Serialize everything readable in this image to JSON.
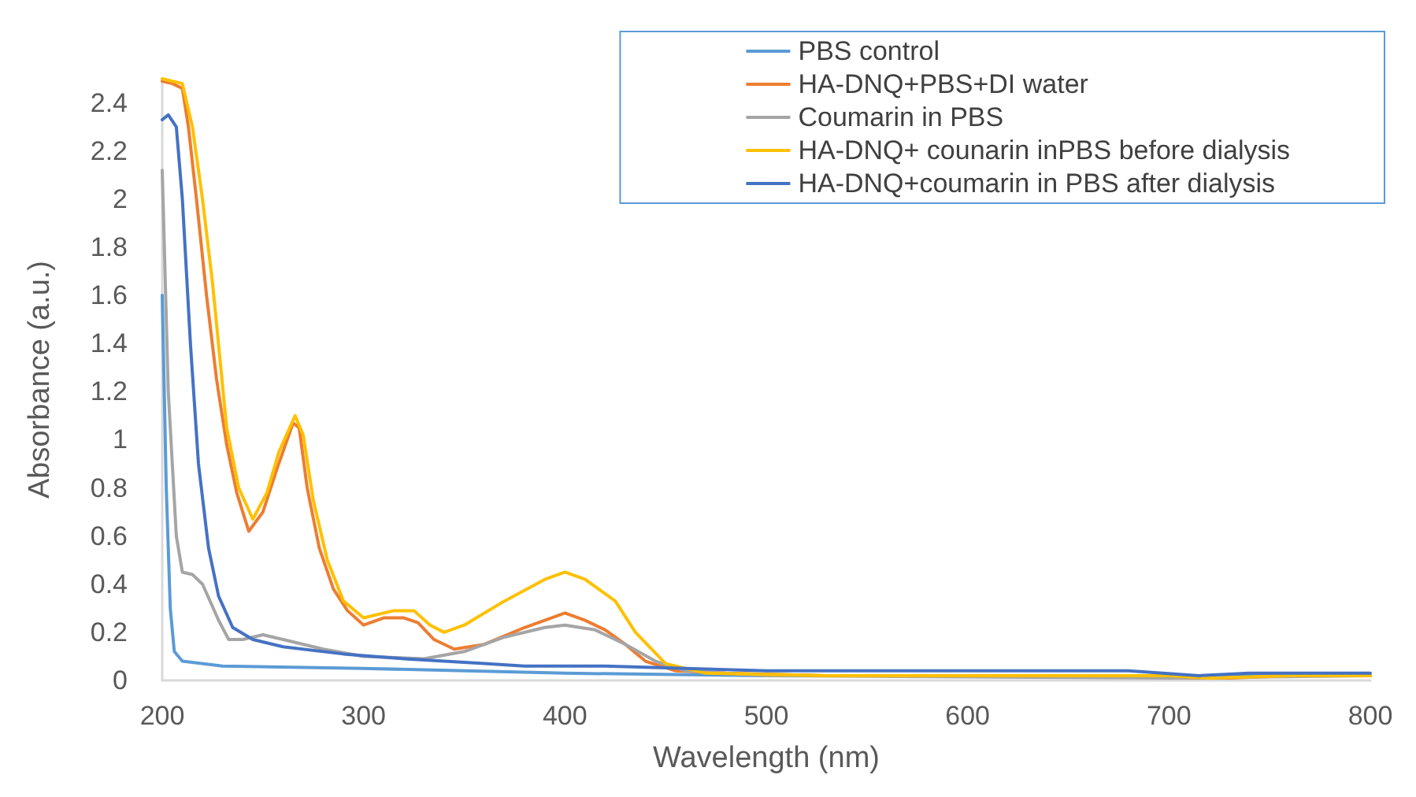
{
  "chart_data": {
    "type": "line",
    "xlabel": "Wavelength (nm)",
    "ylabel": "Absorbance (a.u.)",
    "xlim": [
      200,
      800
    ],
    "xticks": [
      200,
      300,
      400,
      500,
      600,
      700,
      800
    ],
    "ylim": [
      0,
      2.5
    ],
    "yticks": [
      0,
      0.2,
      0.4,
      0.6,
      0.8,
      1,
      1.2,
      1.4,
      1.6,
      1.8,
      2,
      2.2,
      2.4
    ],
    "grid": false,
    "legend": "top right",
    "marker": "none",
    "line_style": "solid",
    "series": [
      {
        "name": "PBS control",
        "color": "#5b9bd5",
        "x": [
          200,
          202,
          204,
          206,
          210,
          230,
          300,
          400,
          500,
          600,
          700,
          800
        ],
        "values": [
          1.6,
          0.8,
          0.3,
          0.12,
          0.08,
          0.06,
          0.05,
          0.03,
          0.02,
          0.02,
          0.02,
          0.02
        ]
      },
      {
        "name": "HA-DNQ+PBS+DI water",
        "color": "#ed7d31",
        "x": [
          200,
          205,
          210,
          213,
          217,
          222,
          227,
          232,
          237,
          243,
          250,
          257,
          265,
          268,
          272,
          278,
          285,
          292,
          300,
          310,
          320,
          327,
          335,
          345,
          360,
          380,
          400,
          410,
          420,
          430,
          440,
          455,
          480,
          530,
          600,
          680,
          710,
          730,
          760,
          800
        ],
        "values": [
          2.49,
          2.48,
          2.46,
          2.3,
          2.0,
          1.6,
          1.25,
          0.98,
          0.78,
          0.62,
          0.7,
          0.88,
          1.07,
          1.05,
          0.8,
          0.55,
          0.38,
          0.29,
          0.23,
          0.26,
          0.26,
          0.24,
          0.17,
          0.13,
          0.15,
          0.22,
          0.28,
          0.25,
          0.21,
          0.15,
          0.08,
          0.04,
          0.03,
          0.02,
          0.02,
          0.02,
          0.01,
          0.01,
          0.02,
          0.02
        ]
      },
      {
        "name": "Coumarin in PBS",
        "color": "#a5a5a5",
        "x": [
          200,
          203,
          207,
          210,
          215,
          220,
          228,
          233,
          240,
          250,
          260,
          280,
          300,
          330,
          350,
          370,
          390,
          400,
          415,
          430,
          445,
          460,
          500,
          700,
          800
        ],
        "values": [
          2.12,
          1.2,
          0.6,
          0.45,
          0.44,
          0.4,
          0.25,
          0.17,
          0.17,
          0.19,
          0.17,
          0.13,
          0.1,
          0.09,
          0.12,
          0.18,
          0.22,
          0.23,
          0.21,
          0.15,
          0.08,
          0.04,
          0.02,
          0.01,
          0.02
        ]
      },
      {
        "name": "HA-DNQ+ counarin inPBS before dialysis",
        "color": "#ffc000",
        "x": [
          200,
          210,
          215,
          220,
          225,
          232,
          238,
          245,
          252,
          258,
          266,
          270,
          275,
          282,
          290,
          300,
          315,
          325,
          333,
          340,
          350,
          370,
          390,
          400,
          410,
          425,
          435,
          450,
          470,
          530,
          700,
          720,
          760,
          800
        ],
        "values": [
          2.5,
          2.48,
          2.3,
          2.0,
          1.65,
          1.05,
          0.8,
          0.67,
          0.78,
          0.95,
          1.1,
          1.02,
          0.75,
          0.5,
          0.33,
          0.26,
          0.29,
          0.29,
          0.23,
          0.2,
          0.23,
          0.33,
          0.42,
          0.45,
          0.42,
          0.33,
          0.2,
          0.07,
          0.03,
          0.02,
          0.02,
          0.01,
          0.02,
          0.02
        ]
      },
      {
        "name": "HA-DNQ+coumarin in PBS after dialysis",
        "color": "#4472c4",
        "x": [
          200,
          203,
          207,
          210,
          214,
          218,
          223,
          228,
          235,
          245,
          260,
          290,
          320,
          360,
          380,
          420,
          500,
          600,
          680,
          715,
          740,
          800
        ],
        "values": [
          2.33,
          2.35,
          2.3,
          2.0,
          1.4,
          0.9,
          0.55,
          0.35,
          0.22,
          0.17,
          0.14,
          0.11,
          0.09,
          0.07,
          0.06,
          0.06,
          0.04,
          0.04,
          0.04,
          0.02,
          0.03,
          0.03
        ]
      }
    ]
  }
}
